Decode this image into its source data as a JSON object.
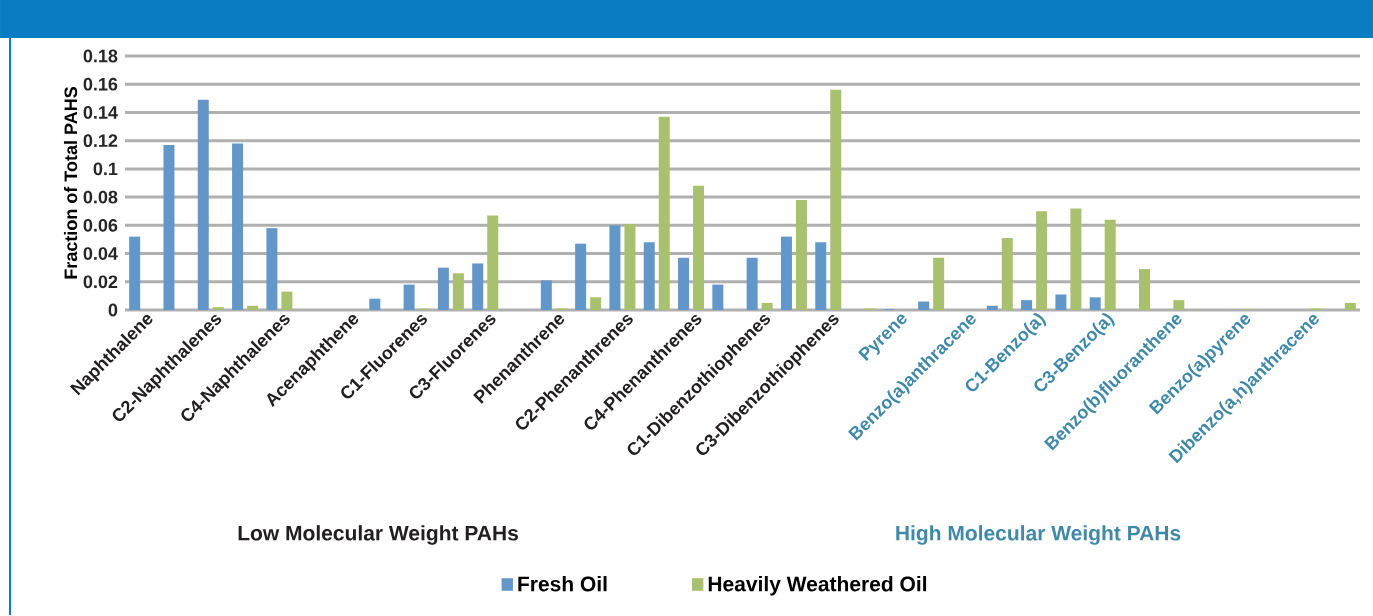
{
  "chart_data": {
    "type": "bar",
    "ylabel": "Fraction of Total PAHS",
    "categories": [
      "Naphthalene",
      null,
      "C2-Naphthalenes",
      null,
      "C4-Naphthalenes",
      null,
      "Acenaphthene",
      null,
      "C1-Fluorenes",
      null,
      "C3-Fluorenes",
      null,
      "Phenanthrene",
      null,
      "C2-Phenanthrenes",
      null,
      "C4-Phenanthrenes",
      null,
      "C1-Dibenzothiophenes",
      null,
      "C3-Dibenzothiophenes",
      null,
      "Pyrene",
      null,
      "Benzo(a)anthracene",
      null,
      "C1-Benzo(a)",
      null,
      "C3-Benzo(a)",
      null,
      "Benzo(b)fluoranthene",
      null,
      "Benzo(a)pyrene",
      null,
      "Dibenzo(a,h)anthracene",
      null
    ],
    "series": [
      {
        "name": "Fresh Oil",
        "color": "#6497c9",
        "values": [
          0.052,
          0.117,
          0.149,
          0.118,
          0.058,
          null,
          null,
          0.008,
          0.018,
          0.03,
          0.033,
          null,
          0.021,
          0.047,
          0.06,
          0.048,
          0.037,
          0.018,
          0.037,
          0.052,
          0.048,
          null,
          0.0005,
          0.006,
          null,
          0.003,
          0.007,
          0.011,
          0.009,
          null,
          null,
          null,
          null,
          null,
          null,
          null
        ]
      },
      {
        "name": "Heavily Weathered Oil",
        "color": "#a9c16e",
        "values": [
          null,
          null,
          0.002,
          0.003,
          0.013,
          null,
          null,
          null,
          0.001,
          0.026,
          0.067,
          null,
          0.001,
          0.009,
          0.061,
          0.137,
          0.088,
          null,
          0.005,
          0.078,
          0.156,
          0.001,
          null,
          0.037,
          null,
          0.051,
          0.07,
          0.072,
          0.064,
          0.029,
          0.007,
          null,
          0.0005,
          null,
          0.001,
          0.005
        ]
      }
    ],
    "ylim": [
      0,
      0.18
    ],
    "yticks": [
      0,
      0.02,
      0.04,
      0.06,
      0.08,
      0.1,
      0.12,
      0.14,
      0.16,
      0.18
    ],
    "grid": "y",
    "legend": "bottom",
    "annotations": [
      "Low Molecular Weight PAHs",
      "High Molecular Weight PAHs"
    ]
  }
}
